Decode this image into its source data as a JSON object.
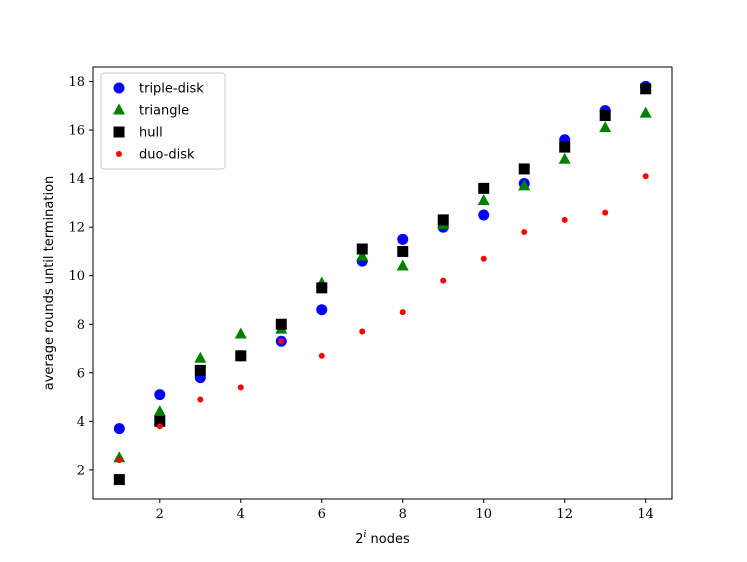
{
  "chart_data": {
    "type": "scatter",
    "title": "",
    "xlabel": "2",
    "xlabel_superscript": "i",
    "xlabel_suffix": " nodes",
    "ylabel": "average rounds until termination",
    "xlim": [
      0.35,
      14.65
    ],
    "ylim": [
      0.8,
      18.6
    ],
    "xticks": [
      2,
      4,
      6,
      8,
      10,
      12,
      14
    ],
    "yticks": [
      2,
      4,
      6,
      8,
      10,
      12,
      14,
      16,
      18
    ],
    "grid": false,
    "legend_position": "top-left",
    "series": [
      {
        "name": "triple-disk",
        "marker": "circle",
        "color": "#0000ff",
        "x": [
          1,
          2,
          3,
          4,
          5,
          6,
          7,
          8,
          9,
          10,
          11,
          12,
          13,
          14
        ],
        "y": [
          3.7,
          5.1,
          5.8,
          6.7,
          7.3,
          8.6,
          10.6,
          11.5,
          12.0,
          12.5,
          13.8,
          15.6,
          16.8,
          17.8
        ]
      },
      {
        "name": "triangle",
        "marker": "triangle",
        "color": "#008000",
        "x": [
          1,
          2,
          3,
          4,
          5,
          6,
          7,
          8,
          9,
          10,
          11,
          12,
          13,
          14
        ],
        "y": [
          2.5,
          4.4,
          6.6,
          7.6,
          7.8,
          9.7,
          10.8,
          10.4,
          12.1,
          13.1,
          13.7,
          14.8,
          16.1,
          16.7
        ]
      },
      {
        "name": "hull",
        "marker": "square",
        "color": "#000000",
        "x": [
          1,
          2,
          3,
          4,
          5,
          6,
          7,
          8,
          9,
          10,
          11,
          12,
          13,
          14
        ],
        "y": [
          1.6,
          4.0,
          6.1,
          6.7,
          8.0,
          9.5,
          11.1,
          11.0,
          12.3,
          13.6,
          14.4,
          15.3,
          16.6,
          17.7
        ]
      },
      {
        "name": "duo-disk",
        "marker": "small-circle",
        "color": "#ff0000",
        "x": [
          1,
          2,
          3,
          4,
          5,
          6,
          7,
          8,
          9,
          10,
          11,
          12,
          13,
          14
        ],
        "y": [
          2.4,
          3.8,
          4.9,
          5.4,
          7.3,
          6.7,
          7.7,
          8.5,
          9.8,
          10.7,
          11.8,
          12.3,
          12.6,
          14.1
        ]
      }
    ]
  }
}
